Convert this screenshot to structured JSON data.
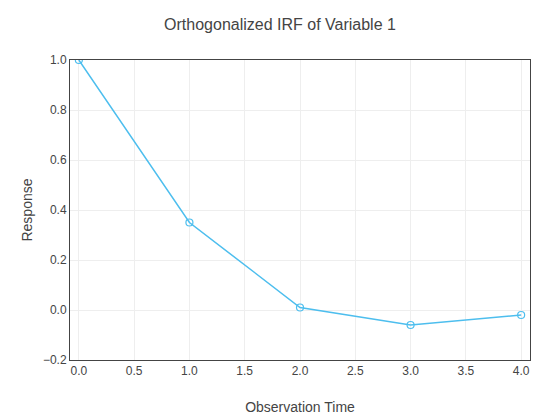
{
  "chart_data": {
    "type": "line",
    "title": "Orthogonalized IRF of Variable 1",
    "xlabel": "Observation Time",
    "ylabel": "Response",
    "x": [
      0,
      1,
      2,
      3,
      4
    ],
    "values": [
      1.0,
      0.35,
      0.01,
      -0.06,
      -0.02
    ],
    "color": "#4DBEEE",
    "marker": "circle-open",
    "line_style": "solid",
    "xlim": [
      -0.08,
      4.08
    ],
    "ylim": [
      -0.2,
      1.0
    ],
    "xticks": [
      {
        "value": 0,
        "label": "0.0"
      },
      0.5,
      {
        "value": 1,
        "label": "1.0"
      },
      1.5,
      {
        "value": 2,
        "label": "2.0"
      },
      2.5,
      {
        "value": 3,
        "label": "3.0"
      },
      3.5,
      {
        "value": 4,
        "label": "4.0"
      }
    ],
    "yticks": [
      {
        "value": -0.2,
        "label": "−0.2"
      },
      {
        "value": 0,
        "label": "0.0"
      },
      0.2,
      0.4,
      0.6,
      0.8,
      {
        "value": 1.0,
        "label": "1.0"
      }
    ],
    "grid": true
  }
}
